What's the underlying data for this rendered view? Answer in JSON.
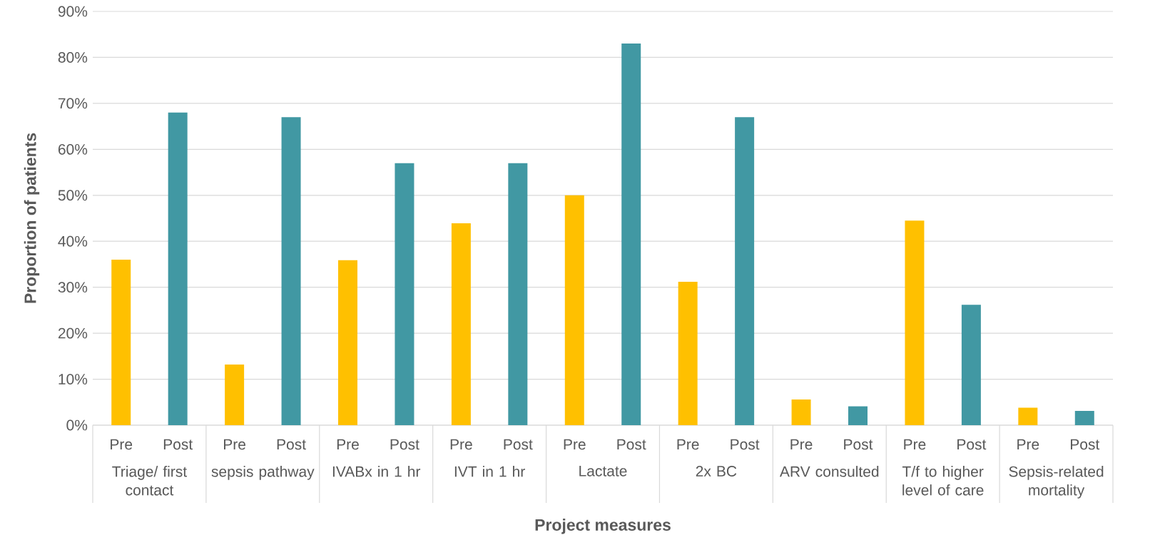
{
  "chart_data": {
    "type": "bar",
    "xlabel": "Project measures",
    "ylabel": "Proportion of patients",
    "categories": [
      "Triage/ first contact",
      "sepsis pathway",
      "IVABx in 1 hr",
      "IVT in 1 hr",
      "Lactate",
      "2x BC",
      "ARV consulted",
      "T/f to higher level of care",
      "Sepsis-related mortality"
    ],
    "series": [
      {
        "name": "Pre",
        "color": "#ffc000",
        "values": [
          36,
          13.2,
          35.9,
          43.9,
          50,
          31.2,
          5.6,
          44.5,
          3.8
        ]
      },
      {
        "name": "Post",
        "color": "#4198a3",
        "values": [
          68,
          67,
          57,
          57,
          83,
          67,
          4.1,
          26.2,
          3.1
        ]
      }
    ],
    "ylim": [
      0,
      90
    ],
    "yticks": [
      {
        "value": 0,
        "label": "0%"
      },
      {
        "value": 10,
        "label": "10%"
      },
      {
        "value": 20,
        "label": "20%"
      },
      {
        "value": 30,
        "label": "30%"
      },
      {
        "value": 40,
        "label": "40%"
      },
      {
        "value": 50,
        "label": "50%"
      },
      {
        "value": 60,
        "label": "60%"
      },
      {
        "value": 70,
        "label": "70%"
      },
      {
        "value": 80,
        "label": "80%"
      },
      {
        "value": 90,
        "label": "90%"
      }
    ],
    "grid": "y"
  }
}
